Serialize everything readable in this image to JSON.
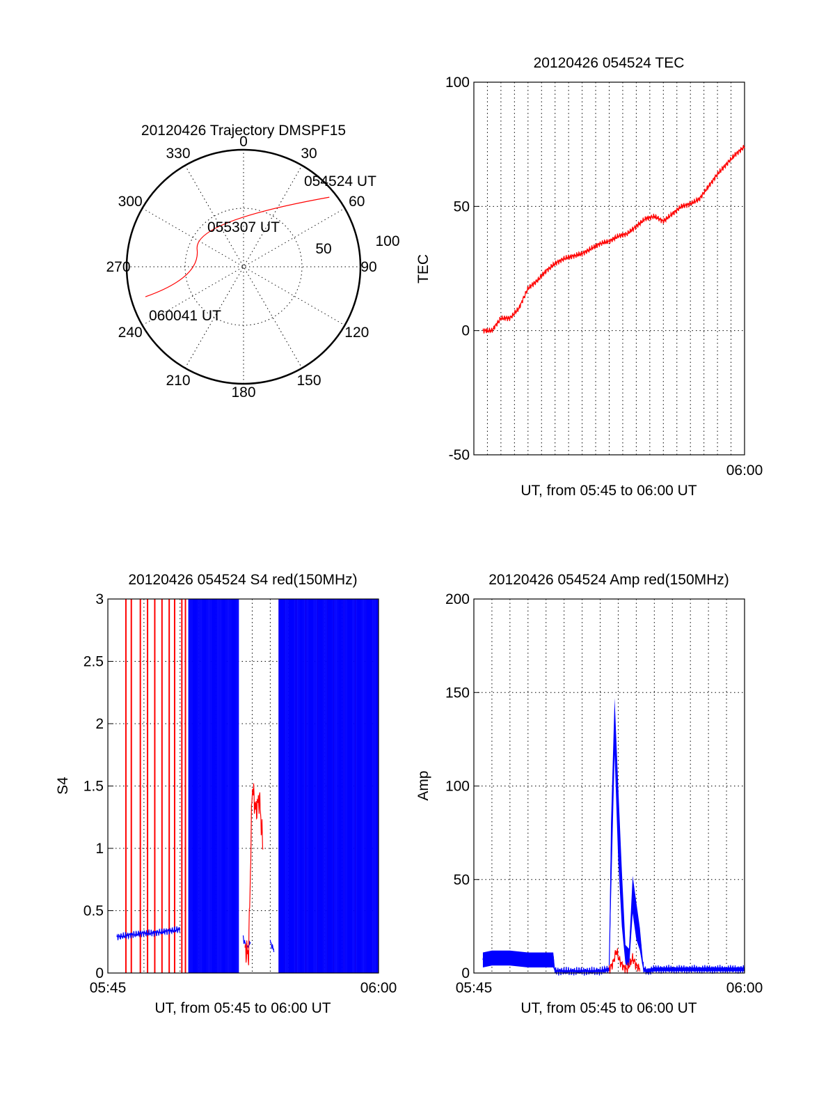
{
  "colors": {
    "red": "#ff0000",
    "blue": "#0000ff"
  },
  "chart_data": [
    {
      "type": "polar",
      "title": "20120426 Trajectory DMSPF15",
      "azimuth_labels": [
        "0",
        "30",
        "60",
        "90",
        "120",
        "150",
        "180",
        "210",
        "240",
        "270",
        "300",
        "330"
      ],
      "radial_labels": [
        "50",
        "100"
      ],
      "track": {
        "color": "red",
        "points": [
          {
            "azimuth": 51,
            "elevation": 5
          },
          {
            "azimuth": 330,
            "elevation": 56
          },
          {
            "azimuth": 253,
            "elevation": 11
          }
        ]
      },
      "annotations": [
        "054524 UT",
        "055307 UT",
        "060041 UT"
      ]
    },
    {
      "type": "line",
      "title": "20120426 054524 TEC",
      "xlabel": "UT, from 05:45 to 06:00 UT",
      "ylabel": "TEC",
      "xlim": [
        "05:45",
        "06:00"
      ],
      "ylim": [
        -50,
        100
      ],
      "yticks": [
        "100",
        "50",
        "0",
        "-50"
      ],
      "xtick_labels": [
        "06:00"
      ],
      "grid": true,
      "series": [
        {
          "color": "red",
          "x_minutes": [
            0.5,
            1,
            1.5,
            2,
            2.5,
            3,
            3.5,
            4,
            4.5,
            5,
            5.5,
            6,
            6.5,
            7,
            7.5,
            8,
            8.5,
            9,
            9.5,
            10,
            10.5,
            11,
            11.5,
            12,
            12.5,
            13,
            13.5,
            14,
            14.5,
            15
          ],
          "y": [
            0,
            0,
            5,
            5,
            9,
            17,
            20,
            24,
            27,
            29,
            30,
            31,
            33,
            35,
            36,
            38,
            39,
            42,
            45,
            46,
            44,
            47,
            50,
            51,
            53,
            58,
            63,
            67,
            71,
            74
          ]
        }
      ]
    },
    {
      "type": "line",
      "title": "20120426 054524 S4 red(150MHz)",
      "xlabel": "UT, from 05:45 to 06:00 UT",
      "ylabel": "S4",
      "xlim": [
        "05:45",
        "06:00"
      ],
      "ylim": [
        0,
        3
      ],
      "yticks": [
        "3",
        "2.5",
        "2",
        "1.5",
        "1",
        "0.5",
        "0"
      ],
      "xtick_labels": [
        "05:45",
        "06:00"
      ],
      "grid": true,
      "series": [
        {
          "color": "blue",
          "segments": [
            {
              "x_minutes": [
                0.5,
                1,
                1.5,
                2,
                2.5,
                3,
                3.5,
                4
              ],
              "y": [
                0.29,
                0.3,
                0.31,
                0.32,
                0.32,
                0.33,
                0.34,
                0.35
              ]
            },
            {
              "x_minutes": [
                7.5,
                7.7,
                7.9
              ],
              "y": [
                0.28,
                0.2,
                0.25
              ]
            },
            {
              "x_minutes": [
                9,
                9.2
              ],
              "y": [
                0.25,
                0.18
              ]
            }
          ],
          "dense_band_minutes": [
            [
              4.5,
              7.3
            ],
            [
              9.5,
              15
            ]
          ]
        },
        {
          "color": "red",
          "segments": [
            {
              "x_minutes": [
                7.6,
                7.8,
                8,
                8.2,
                8.4,
                8.6
              ],
              "y": [
                0.2,
                0.15,
                1.5,
                1.3,
                1.4,
                1.0
              ]
            }
          ],
          "spike_minutes": [
            1,
            1.3,
            1.8,
            2.2,
            2.6,
            3,
            3.4,
            3.7,
            4.1,
            4.3,
            9.5,
            9.8,
            10.1,
            10.4,
            10.7,
            11,
            11.3,
            11.6,
            11.9,
            12.2,
            12.5,
            12.8,
            13.1,
            13.4,
            13.7,
            14,
            14.3,
            14.6,
            14.9
          ]
        }
      ]
    },
    {
      "type": "line",
      "title": "20120426 054524 Amp red(150MHz)",
      "xlabel": "UT, from 05:45 to 06:00 UT",
      "ylabel": "Amp",
      "xlim": [
        "05:45",
        "06:00"
      ],
      "ylim": [
        0,
        200
      ],
      "yticks": [
        "200",
        "150",
        "100",
        "50",
        "0"
      ],
      "xtick_labels": [
        "05:45",
        "06:00"
      ],
      "grid": true,
      "series": [
        {
          "color": "blue",
          "x_minutes": [
            0.5,
            1,
            2,
            3,
            4,
            4.4,
            4.5,
            5,
            6,
            7,
            7.5,
            7.6,
            7.8,
            8,
            8.2,
            8.4,
            8.6,
            8.8,
            9,
            9.2,
            9.4,
            9.6,
            10,
            11,
            12,
            13,
            14,
            15
          ],
          "y": [
            7,
            8,
            8,
            7,
            7,
            7,
            1,
            1,
            1,
            1,
            2,
            60,
            132,
            80,
            40,
            10,
            8,
            42,
            28,
            18,
            2,
            1,
            2,
            2,
            2,
            2,
            2,
            2
          ],
          "band_half_width": [
            4,
            4,
            4,
            4,
            4,
            4,
            0.5,
            0.5,
            0.5,
            0.5,
            1,
            20,
            15,
            20,
            15,
            5,
            5,
            10,
            10,
            6,
            1,
            1,
            1,
            1,
            1,
            1,
            1,
            1
          ]
        },
        {
          "color": "red",
          "x_minutes": [
            7.5,
            7.7,
            7.9,
            8.1,
            8.3,
            8.5,
            8.8,
            9,
            9.2
          ],
          "y": [
            2,
            5,
            12,
            6,
            3,
            2,
            8,
            4,
            2
          ]
        }
      ]
    }
  ]
}
